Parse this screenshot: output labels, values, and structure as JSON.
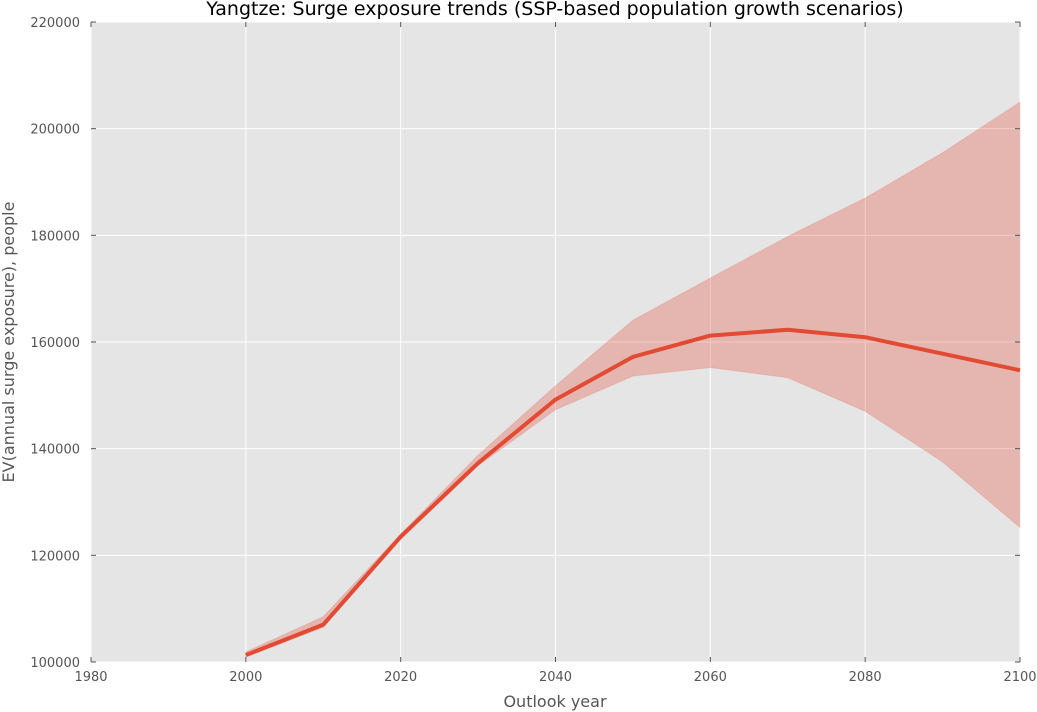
{
  "chart_data": {
    "type": "line",
    "title": "Yangtze: Surge exposure trends (SSP-based population growth scenarios)",
    "xlabel": "Outlook year",
    "ylabel": "EV(annual surge exposure), people",
    "xlim": [
      1980,
      2100
    ],
    "ylim": [
      100000,
      220000
    ],
    "x_ticks": [
      "1980",
      "2000",
      "2020",
      "2040",
      "2060",
      "2080",
      "2100"
    ],
    "y_ticks": [
      "100000",
      "120000",
      "140000",
      "160000",
      "180000",
      "200000",
      "220000"
    ],
    "grid": true,
    "x": [
      2000,
      2010,
      2020,
      2030,
      2040,
      2050,
      2060,
      2070,
      2080,
      2090,
      2100
    ],
    "series": [
      {
        "type": "line",
        "values": [
          101300,
          107000,
          123500,
          137300,
          149200,
          157200,
          161200,
          162300,
          160900,
          157800,
          154700
        ]
      },
      {
        "type": "band",
        "upper": [
          101900,
          108500,
          124000,
          138800,
          151800,
          164100,
          172000,
          179800,
          187000,
          195500,
          205000
        ],
        "lower": [
          100900,
          106500,
          123000,
          136800,
          147300,
          153600,
          155200,
          153300,
          147000,
          137500,
          125200
        ]
      }
    ],
    "colors": {
      "line": "#e24a33",
      "band": "#e24a33",
      "plot_background": "#e5e5e5",
      "grid": "#ffffff"
    }
  }
}
